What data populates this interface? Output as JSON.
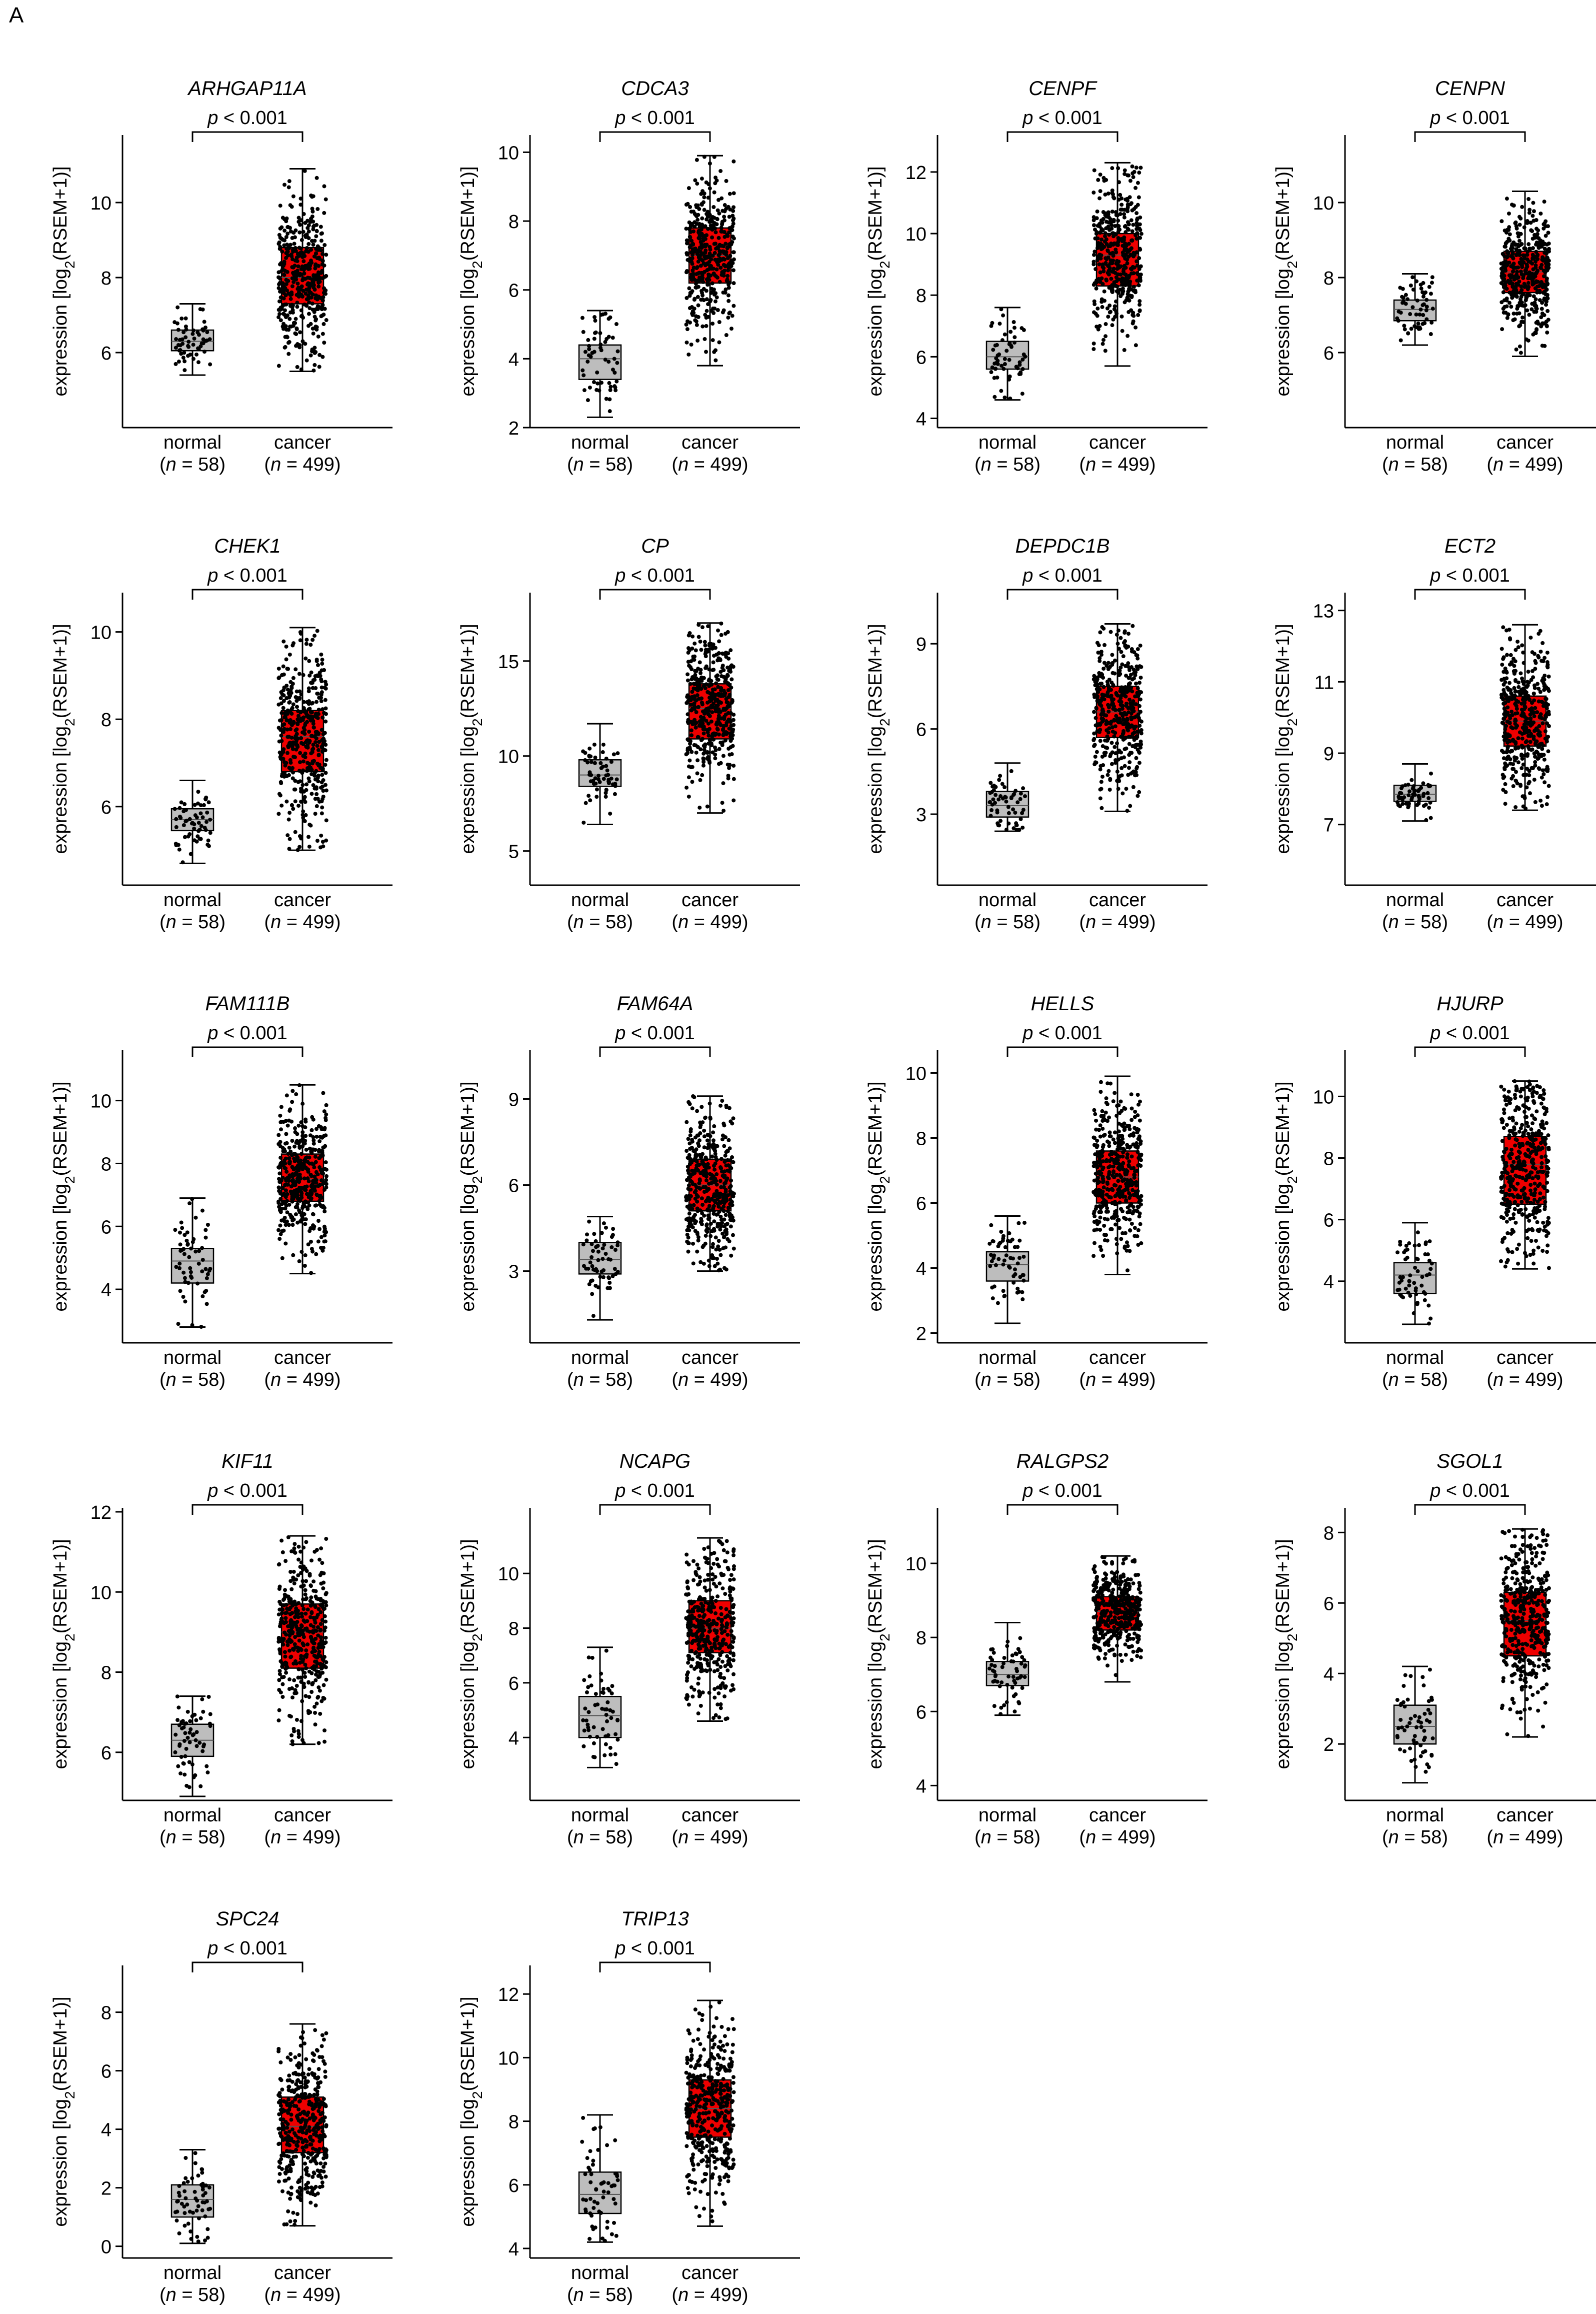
{
  "panel_label": "A",
  "colors": {
    "normal": "#bdbdbd",
    "cancer": "#ee0000",
    "ink": "#000000"
  },
  "chart_data": [
    {
      "type": "box",
      "gene": "ARHGAP11A",
      "title": "ARHGAP11A",
      "ylabel": "expression [log2(RSEM+1)]",
      "ylim": [
        4.0,
        11.8
      ],
      "yticks": [
        6,
        8,
        10
      ],
      "significance": "p < 0.001",
      "groups": [
        {
          "name": "normal",
          "n_label": "(n = 58)",
          "n": 58,
          "min": 5.4,
          "q1": 6.05,
          "median": 6.3,
          "q3": 6.6,
          "max": 7.3
        },
        {
          "name": "cancer",
          "n_label": "(n = 499)",
          "n": 499,
          "min": 5.5,
          "q1": 7.3,
          "median": 8.0,
          "q3": 8.8,
          "max": 10.9
        }
      ]
    },
    {
      "type": "box",
      "gene": "CDCA3",
      "title": "CDCA3",
      "ylabel": "expression [log2(RSEM+1)]",
      "ylim": [
        2.0,
        10.5
      ],
      "yticks": [
        2,
        4,
        6,
        8,
        10
      ],
      "significance": "p < 0.001",
      "groups": [
        {
          "name": "normal",
          "n_label": "(n = 58)",
          "n": 58,
          "min": 2.3,
          "q1": 3.4,
          "median": 4.0,
          "q3": 4.4,
          "max": 5.4
        },
        {
          "name": "cancer",
          "n_label": "(n = 499)",
          "n": 499,
          "min": 3.8,
          "q1": 6.2,
          "median": 7.0,
          "q3": 7.8,
          "max": 9.9
        }
      ]
    },
    {
      "type": "box",
      "gene": "CENPF",
      "title": "CENPF",
      "ylabel": "expression [log2(RSEM+1)]",
      "ylim": [
        3.7,
        13.2
      ],
      "yticks": [
        4,
        6,
        8,
        10,
        12
      ],
      "significance": "p < 0.001",
      "groups": [
        {
          "name": "normal",
          "n_label": "(n = 58)",
          "n": 58,
          "min": 4.6,
          "q1": 5.6,
          "median": 6.0,
          "q3": 6.5,
          "max": 7.6
        },
        {
          "name": "cancer",
          "n_label": "(n = 499)",
          "n": 499,
          "min": 5.7,
          "q1": 8.3,
          "median": 9.3,
          "q3": 10.0,
          "max": 12.3
        }
      ]
    },
    {
      "type": "box",
      "gene": "CENPN",
      "title": "CENPN",
      "ylabel": "expression [log2(RSEM+1)]",
      "ylim": [
        4.0,
        11.8
      ],
      "yticks": [
        6,
        8,
        10
      ],
      "significance": "p < 0.001",
      "groups": [
        {
          "name": "normal",
          "n_label": "(n = 58)",
          "n": 58,
          "min": 6.2,
          "q1": 6.85,
          "median": 7.15,
          "q3": 7.4,
          "max": 8.1
        },
        {
          "name": "cancer",
          "n_label": "(n = 499)",
          "n": 499,
          "min": 5.9,
          "q1": 7.6,
          "median": 8.15,
          "q3": 8.7,
          "max": 10.3
        }
      ]
    },
    {
      "type": "box",
      "gene": "CHEK1",
      "title": "CHEK1",
      "ylabel": "expression [log2(RSEM+1)]",
      "ylim": [
        4.2,
        10.9
      ],
      "yticks": [
        6,
        8,
        10
      ],
      "significance": "p < 0.001",
      "groups": [
        {
          "name": "normal",
          "n_label": "(n = 58)",
          "n": 58,
          "min": 4.7,
          "q1": 5.45,
          "median": 5.7,
          "q3": 5.95,
          "max": 6.6
        },
        {
          "name": "cancer",
          "n_label": "(n = 499)",
          "n": 499,
          "min": 5.0,
          "q1": 6.8,
          "median": 7.6,
          "q3": 8.2,
          "max": 10.1
        }
      ]
    },
    {
      "type": "box",
      "gene": "CP",
      "title": "CP",
      "ylabel": "expression [log2(RSEM+1)]",
      "ylim": [
        3.2,
        18.6
      ],
      "yticks": [
        5,
        10,
        15
      ],
      "significance": "p < 0.001",
      "groups": [
        {
          "name": "normal",
          "n_label": "(n = 58)",
          "n": 58,
          "min": 6.4,
          "q1": 8.4,
          "median": 9.0,
          "q3": 9.8,
          "max": 11.7
        },
        {
          "name": "cancer",
          "n_label": "(n = 499)",
          "n": 499,
          "min": 7.0,
          "q1": 10.9,
          "median": 12.5,
          "q3": 13.8,
          "max": 17.0
        }
      ]
    },
    {
      "type": "box",
      "gene": "DEPDC1B",
      "title": "DEPDC1B",
      "ylabel": "expression [log2(RSEM+1)]",
      "ylim": [
        0.5,
        10.8
      ],
      "yticks": [
        3,
        6,
        9
      ],
      "significance": "p < 0.001",
      "groups": [
        {
          "name": "normal",
          "n_label": "(n = 58)",
          "n": 58,
          "min": 2.4,
          "q1": 2.9,
          "median": 3.3,
          "q3": 3.8,
          "max": 4.8
        },
        {
          "name": "cancer",
          "n_label": "(n = 499)",
          "n": 499,
          "min": 3.1,
          "q1": 5.7,
          "median": 6.6,
          "q3": 7.5,
          "max": 9.7
        }
      ]
    },
    {
      "type": "box",
      "gene": "ECT2",
      "title": "ECT2",
      "ylabel": "expression [log2(RSEM+1)]",
      "ylim": [
        5.3,
        13.5
      ],
      "yticks": [
        7,
        9,
        11,
        13
      ],
      "significance": "p < 0.001",
      "groups": [
        {
          "name": "normal",
          "n_label": "(n = 58)",
          "n": 58,
          "min": 7.1,
          "q1": 7.65,
          "median": 7.85,
          "q3": 8.1,
          "max": 8.7
        },
        {
          "name": "cancer",
          "n_label": "(n = 499)",
          "n": 499,
          "min": 7.4,
          "q1": 9.2,
          "median": 9.9,
          "q3": 10.6,
          "max": 12.6
        }
      ]
    },
    {
      "type": "box",
      "gene": "FAM111B",
      "title": "FAM111B",
      "ylabel": "expression [log2(RSEM+1)]",
      "ylim": [
        2.3,
        11.6
      ],
      "yticks": [
        4,
        6,
        8,
        10
      ],
      "significance": "p < 0.001",
      "groups": [
        {
          "name": "normal",
          "n_label": "(n = 58)",
          "n": 58,
          "min": 2.8,
          "q1": 4.2,
          "median": 4.9,
          "q3": 5.3,
          "max": 6.9
        },
        {
          "name": "cancer",
          "n_label": "(n = 499)",
          "n": 499,
          "min": 4.5,
          "q1": 6.8,
          "median": 7.5,
          "q3": 8.3,
          "max": 10.5
        }
      ]
    },
    {
      "type": "box",
      "gene": "FAM64A",
      "title": "FAM64A",
      "ylabel": "expression [log2(RSEM+1)]",
      "ylim": [
        0.5,
        10.7
      ],
      "yticks": [
        3,
        6,
        9
      ],
      "significance": "p < 0.001",
      "groups": [
        {
          "name": "normal",
          "n_label": "(n = 58)",
          "n": 58,
          "min": 1.3,
          "q1": 2.9,
          "median": 3.4,
          "q3": 4.0,
          "max": 4.9
        },
        {
          "name": "cancer",
          "n_label": "(n = 499)",
          "n": 499,
          "min": 3.0,
          "q1": 5.1,
          "median": 6.0,
          "q3": 6.9,
          "max": 9.1
        }
      ]
    },
    {
      "type": "box",
      "gene": "HELLS",
      "title": "HELLS",
      "ylabel": "expression [log2(RSEM+1)]",
      "ylim": [
        1.7,
        10.7
      ],
      "yticks": [
        2,
        4,
        6,
        8,
        10
      ],
      "significance": "p < 0.001",
      "groups": [
        {
          "name": "normal",
          "n_label": "(n = 58)",
          "n": 58,
          "min": 2.3,
          "q1": 3.6,
          "median": 4.1,
          "q3": 4.5,
          "max": 5.6
        },
        {
          "name": "cancer",
          "n_label": "(n = 499)",
          "n": 499,
          "min": 3.8,
          "q1": 6.0,
          "median": 6.8,
          "q3": 7.6,
          "max": 9.9
        }
      ]
    },
    {
      "type": "box",
      "gene": "HJURP",
      "title": "HJURP",
      "ylabel": "expression [log2(RSEM+1)]",
      "ylim": [
        2.0,
        11.5
      ],
      "yticks": [
        4,
        6,
        8,
        10
      ],
      "significance": "p < 0.001",
      "groups": [
        {
          "name": "normal",
          "n_label": "(n = 58)",
          "n": 58,
          "min": 2.6,
          "q1": 3.6,
          "median": 4.2,
          "q3": 4.6,
          "max": 5.9
        },
        {
          "name": "cancer",
          "n_label": "(n = 499)",
          "n": 499,
          "min": 4.4,
          "q1": 6.5,
          "median": 7.8,
          "q3": 8.7,
          "max": 10.5
        }
      ]
    },
    {
      "type": "box",
      "gene": "KIF11",
      "title": "KIF11",
      "ylabel": "expression [log2(RSEM+1)]",
      "ylim": [
        4.8,
        12.1
      ],
      "yticks": [
        6,
        8,
        10,
        12
      ],
      "significance": "p < 0.001",
      "groups": [
        {
          "name": "normal",
          "n_label": "(n = 58)",
          "n": 58,
          "min": 4.9,
          "q1": 5.9,
          "median": 6.3,
          "q3": 6.7,
          "max": 7.4
        },
        {
          "name": "cancer",
          "n_label": "(n = 499)",
          "n": 499,
          "min": 6.2,
          "q1": 8.1,
          "median": 9.0,
          "q3": 9.7,
          "max": 11.4
        }
      ]
    },
    {
      "type": "box",
      "gene": "NCAPG",
      "title": "NCAPG",
      "ylabel": "expression [log2(RSEM+1)]",
      "ylim": [
        1.7,
        12.4
      ],
      "yticks": [
        4,
        6,
        8,
        10
      ],
      "significance": "p < 0.001",
      "groups": [
        {
          "name": "normal",
          "n_label": "(n = 58)",
          "n": 58,
          "min": 2.9,
          "q1": 4.0,
          "median": 4.8,
          "q3": 5.5,
          "max": 7.3
        },
        {
          "name": "cancer",
          "n_label": "(n = 499)",
          "n": 499,
          "min": 4.6,
          "q1": 7.1,
          "median": 8.0,
          "q3": 9.0,
          "max": 11.3
        }
      ]
    },
    {
      "type": "box",
      "gene": "RALGPS2",
      "title": "RALGPS2",
      "ylabel": "expression [log2(RSEM+1)]",
      "ylim": [
        3.6,
        11.5
      ],
      "yticks": [
        4,
        6,
        8,
        10
      ],
      "significance": "p < 0.001",
      "groups": [
        {
          "name": "normal",
          "n_label": "(n = 58)",
          "n": 58,
          "min": 5.9,
          "q1": 6.7,
          "median": 7.0,
          "q3": 7.35,
          "max": 8.4
        },
        {
          "name": "cancer",
          "n_label": "(n = 499)",
          "n": 499,
          "min": 6.8,
          "q1": 8.2,
          "median": 8.7,
          "q3": 9.1,
          "max": 10.2
        }
      ]
    },
    {
      "type": "box",
      "gene": "SGOL1",
      "title": "SGOL1",
      "ylabel": "expression [log2(RSEM+1)]",
      "ylim": [
        0.4,
        8.7
      ],
      "yticks": [
        2,
        4,
        6,
        8
      ],
      "significance": "p < 0.001",
      "groups": [
        {
          "name": "normal",
          "n_label": "(n = 58)",
          "n": 58,
          "min": 0.9,
          "q1": 2.0,
          "median": 2.5,
          "q3": 3.1,
          "max": 4.2
        },
        {
          "name": "cancer",
          "n_label": "(n = 499)",
          "n": 499,
          "min": 2.2,
          "q1": 4.5,
          "median": 5.5,
          "q3": 6.3,
          "max": 8.1
        }
      ]
    },
    {
      "type": "box",
      "gene": "SPC24",
      "title": "SPC24",
      "ylabel": "expression [log2(RSEM+1)]",
      "ylim": [
        -0.4,
        9.6
      ],
      "yticks": [
        0,
        2,
        4,
        6,
        8
      ],
      "significance": "p < 0.001",
      "groups": [
        {
          "name": "normal",
          "n_label": "(n = 58)",
          "n": 58,
          "min": 0.1,
          "q1": 1.0,
          "median": 1.6,
          "q3": 2.1,
          "max": 3.3
        },
        {
          "name": "cancer",
          "n_label": "(n = 499)",
          "n": 499,
          "min": 0.7,
          "q1": 3.2,
          "median": 4.1,
          "q3": 5.1,
          "max": 7.6
        }
      ]
    },
    {
      "type": "box",
      "gene": "TRIP13",
      "title": "TRIP13",
      "ylabel": "expression [log2(RSEM+1)]",
      "ylim": [
        3.7,
        12.9
      ],
      "yticks": [
        4,
        6,
        8,
        10,
        12
      ],
      "significance": "p < 0.001",
      "groups": [
        {
          "name": "normal",
          "n_label": "(n = 58)",
          "n": 58,
          "min": 4.2,
          "q1": 5.1,
          "median": 5.7,
          "q3": 6.4,
          "max": 8.2
        },
        {
          "name": "cancer",
          "n_label": "(n = 499)",
          "n": 499,
          "min": 4.7,
          "q1": 7.5,
          "median": 8.4,
          "q3": 9.3,
          "max": 11.8
        }
      ]
    }
  ]
}
